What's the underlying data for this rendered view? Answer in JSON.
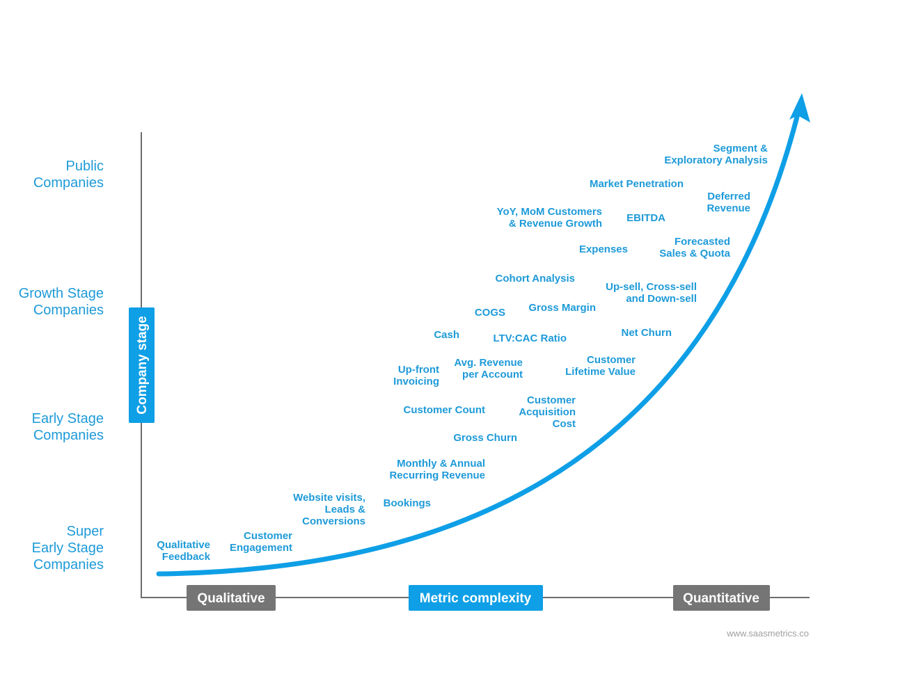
{
  "y_axis": {
    "title": "Company stage",
    "stages": [
      {
        "lines": [
          "Public",
          "Companies"
        ]
      },
      {
        "lines": [
          "Growth Stage",
          "Companies"
        ]
      },
      {
        "lines": [
          "Early Stage",
          "Companies"
        ]
      },
      {
        "lines": [
          "Super",
          "Early Stage",
          "Companies"
        ]
      }
    ]
  },
  "x_axis": {
    "left_label": "Qualitative",
    "title": "Metric complexity",
    "right_label": "Quantitative"
  },
  "metrics": [
    {
      "lines": [
        "Segment &",
        "Exploratory Analysis"
      ]
    },
    {
      "lines": [
        "Market Penetration"
      ]
    },
    {
      "lines": [
        "Deferred",
        "Revenue"
      ]
    },
    {
      "lines": [
        "YoY, MoM Customers",
        "& Revenue Growth"
      ]
    },
    {
      "lines": [
        "EBITDA"
      ]
    },
    {
      "lines": [
        "Forecasted",
        "Sales & Quota"
      ]
    },
    {
      "lines": [
        "Expenses"
      ]
    },
    {
      "lines": [
        "Cohort Analysis"
      ]
    },
    {
      "lines": [
        "Up-sell, Cross-sell",
        "and Down-sell"
      ]
    },
    {
      "lines": [
        "COGS"
      ]
    },
    {
      "lines": [
        "Gross Margin"
      ]
    },
    {
      "lines": [
        "Cash"
      ]
    },
    {
      "lines": [
        "LTV:CAC Ratio"
      ]
    },
    {
      "lines": [
        "Net Churn"
      ]
    },
    {
      "lines": [
        "Up-front",
        "Invoicing"
      ]
    },
    {
      "lines": [
        "Avg. Revenue",
        "per Account"
      ]
    },
    {
      "lines": [
        "Customer",
        "Lifetime Value"
      ]
    },
    {
      "lines": [
        "Customer Count"
      ]
    },
    {
      "lines": [
        "Customer",
        "Acquisition",
        "Cost"
      ]
    },
    {
      "lines": [
        "Gross Churn"
      ]
    },
    {
      "lines": [
        "Monthly & Annual",
        "Recurring Revenue"
      ]
    },
    {
      "lines": [
        "Website visits,",
        "Leads &",
        "Conversions"
      ]
    },
    {
      "lines": [
        "Bookings"
      ]
    },
    {
      "lines": [
        "Customer",
        "Engagement"
      ]
    },
    {
      "lines": [
        "Qualitative",
        "Feedback"
      ]
    }
  ],
  "footer": "www.saasmetrics.co"
}
